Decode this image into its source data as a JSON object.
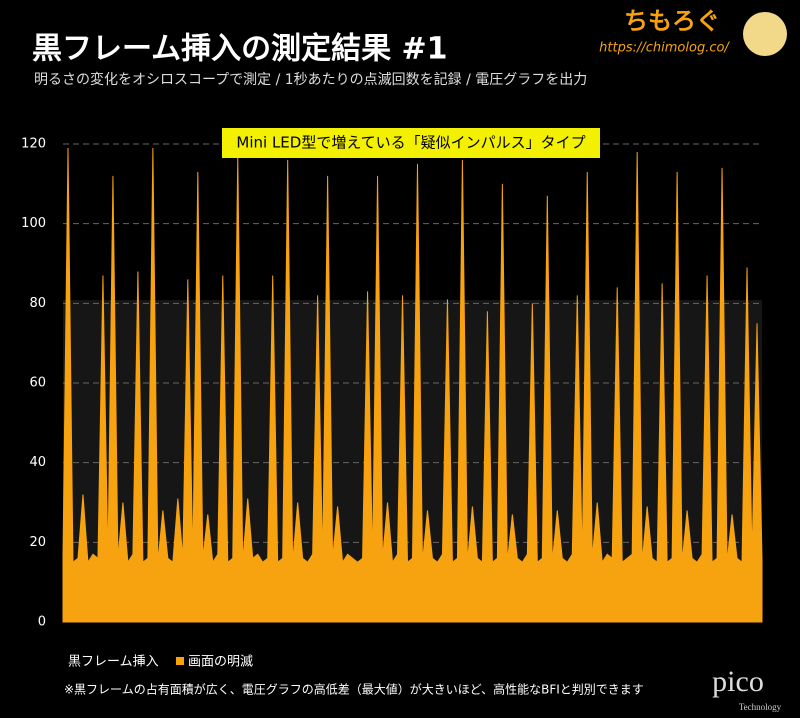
{
  "brand": {
    "name": "ちもろぐ",
    "url": "https://chimolog.co/"
  },
  "chart_data": {
    "type": "area",
    "title": "黒フレーム挿入の測定結果 #1",
    "subtitle": "明るさの変化をオシロスコープで測定 / 1秒あたりの点滅回数を記録 / 電圧グラフを出力",
    "annotation": "Mini LED型で増えている「疑似インパルス」タイプ",
    "legend_title": "黒フレーム挿入",
    "footnote": "※黒フレームの占有面積が広く、電圧グラフの高低差（最大値）が大きいほど、高性能なBFIと判別できます",
    "ylim": [
      0,
      120
    ],
    "yticks": [
      0,
      20,
      40,
      60,
      80,
      100,
      120
    ],
    "grid": true,
    "series": [
      {
        "name": "画面の明滅",
        "color": "#f7a20f",
        "values": [
          17,
          119,
          15,
          16,
          32,
          15,
          17,
          16,
          87,
          15,
          112,
          16,
          30,
          15,
          17,
          88,
          15,
          16,
          119,
          15,
          28,
          16,
          15,
          31,
          16,
          86,
          15,
          113,
          16,
          27,
          15,
          17,
          87,
          15,
          16,
          117,
          15,
          31,
          16,
          17,
          15,
          16,
          87,
          15,
          16,
          116,
          15,
          30,
          16,
          15,
          17,
          82,
          15,
          112,
          16,
          29,
          15,
          17,
          16,
          15,
          16,
          83,
          15,
          112,
          16,
          30,
          15,
          17,
          82,
          15,
          16,
          115,
          15,
          28,
          16,
          15,
          17,
          81,
          15,
          16,
          116,
          15,
          29,
          16,
          15,
          78,
          15,
          16,
          110,
          15,
          27,
          16,
          15,
          17,
          80,
          15,
          16,
          107,
          15,
          28,
          16,
          15,
          17,
          82,
          15,
          113,
          16,
          30,
          15,
          17,
          16,
          84,
          15,
          16,
          17,
          118,
          15,
          29,
          16,
          15,
          85,
          15,
          16,
          113,
          15,
          28,
          16,
          15,
          17,
          87,
          15,
          16,
          114,
          15,
          27,
          16,
          15,
          89,
          16,
          75,
          16
        ]
      }
    ]
  },
  "watermark": {
    "name": "pico",
    "sub": "Technology"
  }
}
